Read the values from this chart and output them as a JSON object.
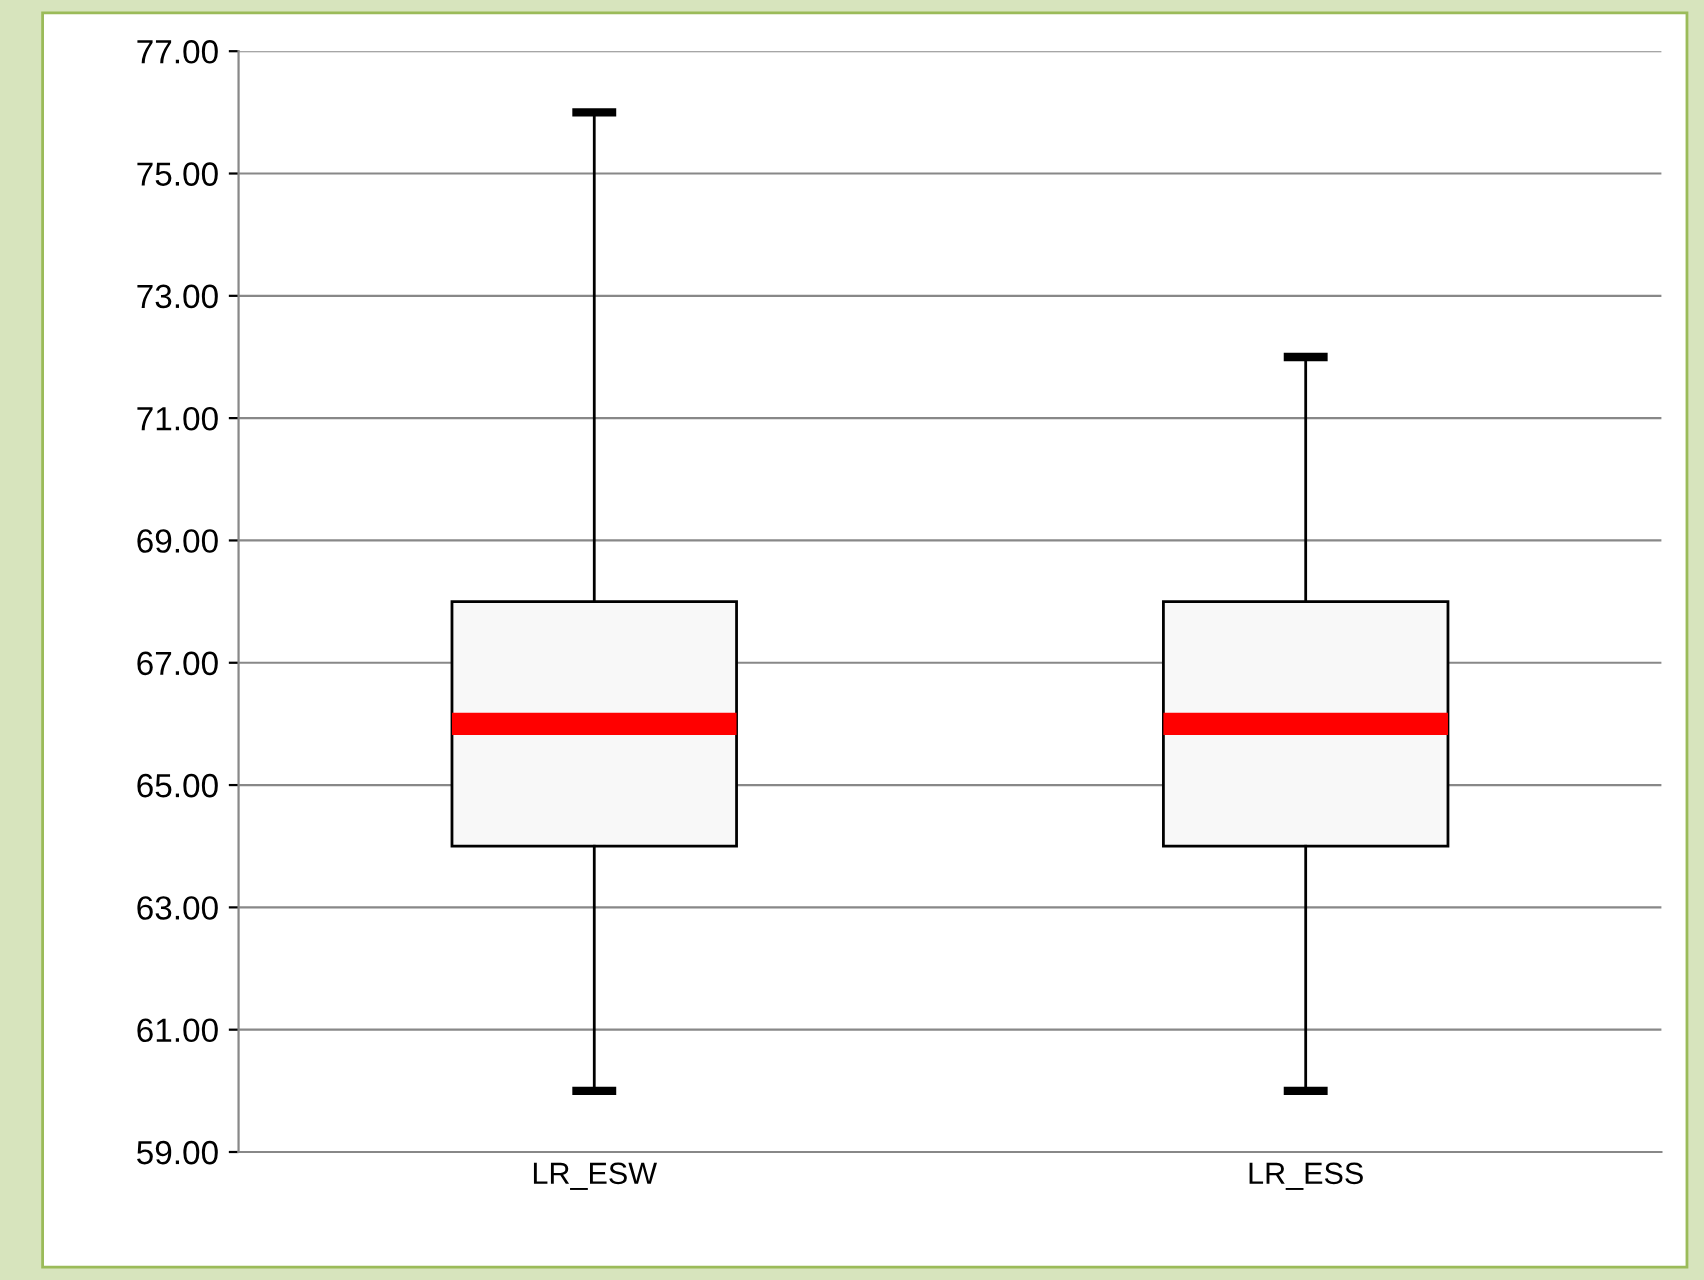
{
  "chart_data": {
    "type": "box",
    "categories": [
      "LR_ESW",
      "LR_ESS"
    ],
    "boxes": [
      {
        "low": 60,
        "q1": 64,
        "median": 66,
        "q3": 68,
        "high": 76
      },
      {
        "low": 60,
        "q1": 64,
        "median": 66,
        "q3": 68,
        "high": 72
      }
    ],
    "color": "#f8f8f8",
    "ylim": [
      59,
      77
    ],
    "yticks": [
      {
        "value": 59,
        "label": "59.00"
      },
      {
        "value": 61,
        "label": "61.00"
      },
      {
        "value": 63,
        "label": "63.00"
      },
      {
        "value": 65,
        "label": "65.00"
      },
      {
        "value": 67,
        "label": "67.00"
      },
      {
        "value": 69,
        "label": "69.00"
      },
      {
        "value": 71,
        "label": "71.00"
      },
      {
        "value": 73,
        "label": "73.00"
      },
      {
        "value": 75,
        "label": "75.00"
      },
      {
        "value": 77,
        "label": "77.00"
      }
    ],
    "grid": "y"
  }
}
